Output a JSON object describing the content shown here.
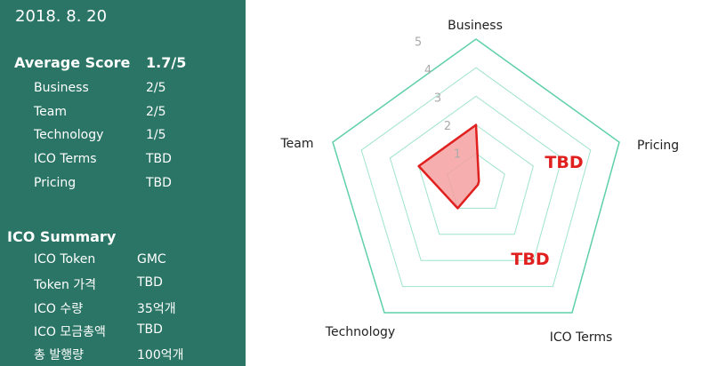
{
  "date": "2018. 8. 20",
  "average": {
    "label": "Average Score",
    "value": "1.7/5",
    "rows": [
      [
        "Business",
        "2/5"
      ],
      [
        "Team",
        "2/5"
      ],
      [
        "Technology",
        "1/5"
      ],
      [
        "ICO Terms",
        "TBD"
      ],
      [
        "Pricing",
        "TBD"
      ]
    ]
  },
  "summary": {
    "label": "ICO Summary",
    "rows": [
      [
        "ICO Token",
        "GMC"
      ],
      [
        "Token 가격",
        "TBD"
      ],
      [
        "ICO 수량",
        "35억개"
      ],
      [
        "ICO 모금총액",
        "TBD"
      ],
      [
        "총 발행량",
        "100억개"
      ]
    ]
  },
  "chart_data": {
    "type": "radar",
    "axes": [
      "Business",
      "Pricing",
      "ICO Terms",
      "Technology",
      "Team"
    ],
    "values": [
      2,
      null,
      null,
      1,
      2
    ],
    "range": [
      0,
      5
    ],
    "ticks": [
      "1",
      "2",
      "3",
      "4",
      "5"
    ],
    "annotations": [
      "TBD",
      "TBD"
    ],
    "colors": {
      "grid": "#5fd0a8",
      "fill": "#f4a0a0",
      "stroke": "#e0201e",
      "tbd": "#e0201e"
    }
  }
}
